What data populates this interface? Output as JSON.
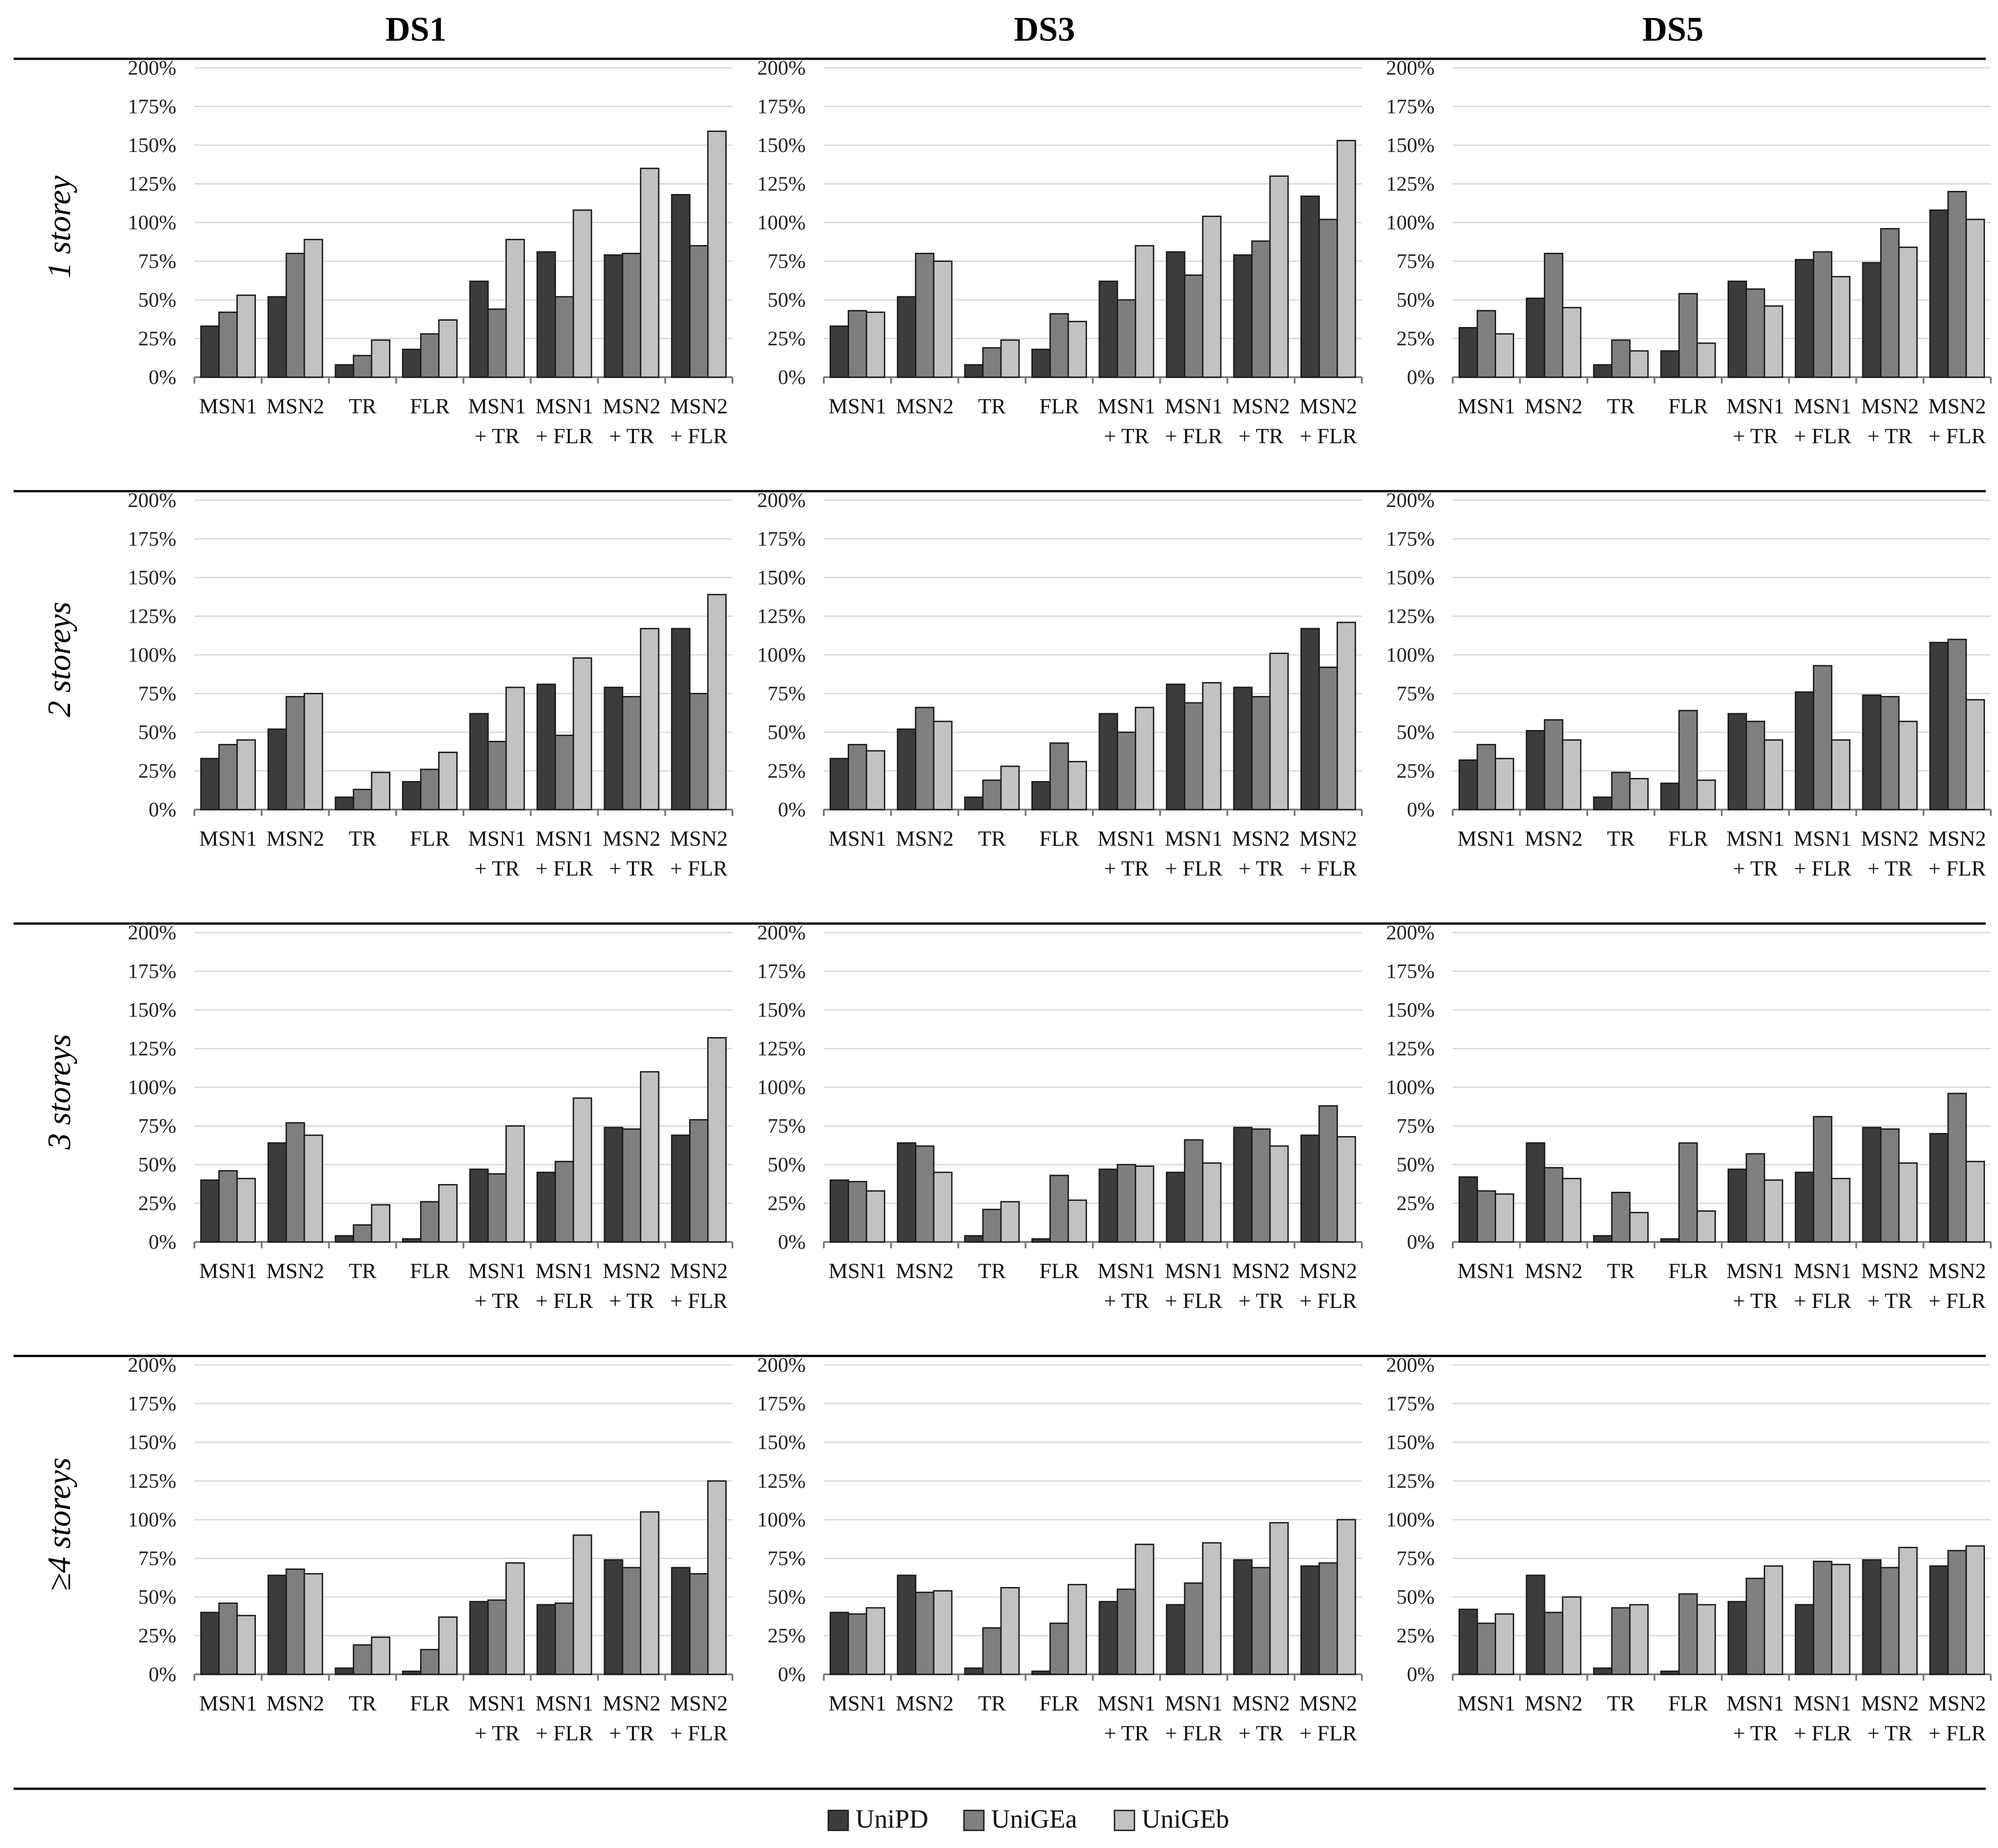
{
  "columns": [
    "DS1",
    "DS3",
    "DS5"
  ],
  "rows": [
    "1 storey",
    "2 storeys",
    "3 storeys",
    "≥4 storeys"
  ],
  "colors": {
    "UniPD": "#3c3c3c",
    "UniGEa": "#7f7f7f",
    "UniGEb": "#c2c2c2",
    "grid": "#d9d9d9",
    "axis": "#7a7a7a",
    "rule": "#000000"
  },
  "legend": [
    {
      "name": "UniPD",
      "color": "#3c3c3c"
    },
    {
      "name": "UniGEa",
      "color": "#7f7f7f"
    },
    {
      "name": "UniGEb",
      "color": "#c2c2c2"
    }
  ],
  "chart_data": [
    {
      "type": "bar",
      "row": "1 storey",
      "column": "DS1",
      "ylim": [
        0,
        200
      ],
      "yticks": [
        "0%",
        "25%",
        "50%",
        "75%",
        "100%",
        "125%",
        "150%",
        "175%",
        "200%"
      ],
      "categories": [
        [
          "MSN1"
        ],
        [
          "MSN2"
        ],
        [
          "TR"
        ],
        [
          "FLR"
        ],
        [
          "MSN1",
          "+ TR"
        ],
        [
          "MSN1",
          "+ FLR"
        ],
        [
          "MSN2",
          "+ TR"
        ],
        [
          "MSN2",
          "+ FLR"
        ]
      ],
      "series": [
        {
          "name": "UniPD",
          "values": [
            33,
            52,
            8,
            18,
            62,
            81,
            79,
            118
          ]
        },
        {
          "name": "UniGEa",
          "values": [
            42,
            80,
            14,
            28,
            44,
            52,
            80,
            85
          ]
        },
        {
          "name": "UniGEb",
          "values": [
            53,
            89,
            24,
            37,
            89,
            108,
            135,
            159
          ]
        }
      ]
    },
    {
      "type": "bar",
      "row": "1 storey",
      "column": "DS3",
      "ylim": [
        0,
        200
      ],
      "yticks": [
        "0%",
        "25%",
        "50%",
        "75%",
        "100%",
        "125%",
        "150%",
        "175%",
        "200%"
      ],
      "categories": [
        [
          "MSN1"
        ],
        [
          "MSN2"
        ],
        [
          "TR"
        ],
        [
          "FLR"
        ],
        [
          "MSN1",
          "+ TR"
        ],
        [
          "MSN1",
          "+ FLR"
        ],
        [
          "MSN2",
          "+ TR"
        ],
        [
          "MSN2",
          "+ FLR"
        ]
      ],
      "series": [
        {
          "name": "UniPD",
          "values": [
            33,
            52,
            8,
            18,
            62,
            81,
            79,
            117
          ]
        },
        {
          "name": "UniGEa",
          "values": [
            43,
            80,
            19,
            41,
            50,
            66,
            88,
            102
          ]
        },
        {
          "name": "UniGEb",
          "values": [
            42,
            75,
            24,
            36,
            85,
            104,
            130,
            153
          ]
        }
      ]
    },
    {
      "type": "bar",
      "row": "1 storey",
      "column": "DS5",
      "ylim": [
        0,
        200
      ],
      "yticks": [
        "0%",
        "25%",
        "50%",
        "75%",
        "100%",
        "125%",
        "150%",
        "175%",
        "200%"
      ],
      "categories": [
        [
          "MSN1"
        ],
        [
          "MSN2"
        ],
        [
          "TR"
        ],
        [
          "FLR"
        ],
        [
          "MSN1",
          "+ TR"
        ],
        [
          "MSN1",
          "+ FLR"
        ],
        [
          "MSN2",
          "+ TR"
        ],
        [
          "MSN2",
          "+ FLR"
        ]
      ],
      "series": [
        {
          "name": "UniPD",
          "values": [
            32,
            51,
            8,
            17,
            62,
            76,
            74,
            108
          ]
        },
        {
          "name": "UniGEa",
          "values": [
            43,
            80,
            24,
            54,
            57,
            81,
            96,
            120
          ]
        },
        {
          "name": "UniGEb",
          "values": [
            28,
            45,
            17,
            22,
            46,
            65,
            84,
            102
          ]
        }
      ]
    },
    {
      "type": "bar",
      "row": "2 storeys",
      "column": "DS1",
      "ylim": [
        0,
        200
      ],
      "yticks": [
        "0%",
        "25%",
        "50%",
        "75%",
        "100%",
        "125%",
        "150%",
        "175%",
        "200%"
      ],
      "categories": [
        [
          "MSN1"
        ],
        [
          "MSN2"
        ],
        [
          "TR"
        ],
        [
          "FLR"
        ],
        [
          "MSN1",
          "+ TR"
        ],
        [
          "MSN1",
          "+ FLR"
        ],
        [
          "MSN2",
          "+ TR"
        ],
        [
          "MSN2",
          "+ FLR"
        ]
      ],
      "series": [
        {
          "name": "UniPD",
          "values": [
            33,
            52,
            8,
            18,
            62,
            81,
            79,
            117
          ]
        },
        {
          "name": "UniGEa",
          "values": [
            42,
            73,
            13,
            26,
            44,
            48,
            73,
            75
          ]
        },
        {
          "name": "UniGEb",
          "values": [
            45,
            75,
            24,
            37,
            79,
            98,
            117,
            139
          ]
        }
      ]
    },
    {
      "type": "bar",
      "row": "2 storeys",
      "column": "DS3",
      "ylim": [
        0,
        200
      ],
      "yticks": [
        "0%",
        "25%",
        "50%",
        "75%",
        "100%",
        "125%",
        "150%",
        "175%",
        "200%"
      ],
      "categories": [
        [
          "MSN1"
        ],
        [
          "MSN2"
        ],
        [
          "TR"
        ],
        [
          "FLR"
        ],
        [
          "MSN1",
          "+ TR"
        ],
        [
          "MSN1",
          "+ FLR"
        ],
        [
          "MSN2",
          "+ TR"
        ],
        [
          "MSN2",
          "+ FLR"
        ]
      ],
      "series": [
        {
          "name": "UniPD",
          "values": [
            33,
            52,
            8,
            18,
            62,
            81,
            79,
            117
          ]
        },
        {
          "name": "UniGEa",
          "values": [
            42,
            66,
            19,
            43,
            50,
            69,
            73,
            92
          ]
        },
        {
          "name": "UniGEb",
          "values": [
            38,
            57,
            28,
            31,
            66,
            82,
            101,
            121
          ]
        }
      ]
    },
    {
      "type": "bar",
      "row": "2 storeys",
      "column": "DS5",
      "ylim": [
        0,
        200
      ],
      "yticks": [
        "0%",
        "25%",
        "50%",
        "75%",
        "100%",
        "125%",
        "150%",
        "175%",
        "200%"
      ],
      "categories": [
        [
          "MSN1"
        ],
        [
          "MSN2"
        ],
        [
          "TR"
        ],
        [
          "FLR"
        ],
        [
          "MSN1",
          "+ TR"
        ],
        [
          "MSN1",
          "+ FLR"
        ],
        [
          "MSN2",
          "+ TR"
        ],
        [
          "MSN2",
          "+ FLR"
        ]
      ],
      "series": [
        {
          "name": "UniPD",
          "values": [
            32,
            51,
            8,
            17,
            62,
            76,
            74,
            108
          ]
        },
        {
          "name": "UniGEa",
          "values": [
            42,
            58,
            24,
            64,
            57,
            93,
            73,
            110
          ]
        },
        {
          "name": "UniGEb",
          "values": [
            33,
            45,
            20,
            19,
            45,
            45,
            57,
            71
          ]
        }
      ]
    },
    {
      "type": "bar",
      "row": "3 storeys",
      "column": "DS1",
      "ylim": [
        0,
        200
      ],
      "yticks": [
        "0%",
        "25%",
        "50%",
        "75%",
        "100%",
        "125%",
        "150%",
        "175%",
        "200%"
      ],
      "categories": [
        [
          "MSN1"
        ],
        [
          "MSN2"
        ],
        [
          "TR"
        ],
        [
          "FLR"
        ],
        [
          "MSN1",
          "+ TR"
        ],
        [
          "MSN1",
          "+ FLR"
        ],
        [
          "MSN2",
          "+ TR"
        ],
        [
          "MSN2",
          "+ FLR"
        ]
      ],
      "series": [
        {
          "name": "UniPD",
          "values": [
            40,
            64,
            4,
            2,
            47,
            45,
            74,
            69
          ]
        },
        {
          "name": "UniGEa",
          "values": [
            46,
            77,
            11,
            26,
            44,
            52,
            73,
            79
          ]
        },
        {
          "name": "UniGEb",
          "values": [
            41,
            69,
            24,
            37,
            75,
            93,
            110,
            132
          ]
        }
      ]
    },
    {
      "type": "bar",
      "row": "3 storeys",
      "column": "DS3",
      "ylim": [
        0,
        200
      ],
      "yticks": [
        "0%",
        "25%",
        "50%",
        "75%",
        "100%",
        "125%",
        "150%",
        "175%",
        "200%"
      ],
      "categories": [
        [
          "MSN1"
        ],
        [
          "MSN2"
        ],
        [
          "TR"
        ],
        [
          "FLR"
        ],
        [
          "MSN1",
          "+ TR"
        ],
        [
          "MSN1",
          "+ FLR"
        ],
        [
          "MSN2",
          "+ TR"
        ],
        [
          "MSN2",
          "+ FLR"
        ]
      ],
      "series": [
        {
          "name": "UniPD",
          "values": [
            40,
            64,
            4,
            2,
            47,
            45,
            74,
            69
          ]
        },
        {
          "name": "UniGEa",
          "values": [
            39,
            62,
            21,
            43,
            50,
            66,
            73,
            88
          ]
        },
        {
          "name": "UniGEb",
          "values": [
            33,
            45,
            26,
            27,
            49,
            51,
            62,
            68
          ]
        }
      ]
    },
    {
      "type": "bar",
      "row": "3 storeys",
      "column": "DS5",
      "ylim": [
        0,
        200
      ],
      "yticks": [
        "0%",
        "25%",
        "50%",
        "75%",
        "100%",
        "125%",
        "150%",
        "175%",
        "200%"
      ],
      "categories": [
        [
          "MSN1"
        ],
        [
          "MSN2"
        ],
        [
          "TR"
        ],
        [
          "FLR"
        ],
        [
          "MSN1",
          "+ TR"
        ],
        [
          "MSN1",
          "+ FLR"
        ],
        [
          "MSN2",
          "+ TR"
        ],
        [
          "MSN2",
          "+ FLR"
        ]
      ],
      "series": [
        {
          "name": "UniPD",
          "values": [
            42,
            64,
            4,
            2,
            47,
            45,
            74,
            70
          ]
        },
        {
          "name": "UniGEa",
          "values": [
            33,
            48,
            32,
            64,
            57,
            81,
            73,
            96
          ]
        },
        {
          "name": "UniGEb",
          "values": [
            31,
            41,
            19,
            20,
            40,
            41,
            51,
            52
          ]
        }
      ]
    },
    {
      "type": "bar",
      "row": "≥4 storeys",
      "column": "DS1",
      "ylim": [
        0,
        200
      ],
      "yticks": [
        "0%",
        "25%",
        "50%",
        "75%",
        "100%",
        "125%",
        "150%",
        "175%",
        "200%"
      ],
      "categories": [
        [
          "MSN1"
        ],
        [
          "MSN2"
        ],
        [
          "TR"
        ],
        [
          "FLR"
        ],
        [
          "MSN1",
          "+ TR"
        ],
        [
          "MSN1",
          "+ FLR"
        ],
        [
          "MSN2",
          "+ TR"
        ],
        [
          "MSN2",
          "+ FLR"
        ]
      ],
      "series": [
        {
          "name": "UniPD",
          "values": [
            40,
            64,
            4,
            2,
            47,
            45,
            74,
            69
          ]
        },
        {
          "name": "UniGEa",
          "values": [
            46,
            68,
            19,
            16,
            48,
            46,
            69,
            65
          ]
        },
        {
          "name": "UniGEb",
          "values": [
            38,
            65,
            24,
            37,
            72,
            90,
            105,
            125
          ]
        }
      ]
    },
    {
      "type": "bar",
      "row": "≥4 storeys",
      "column": "DS3",
      "ylim": [
        0,
        200
      ],
      "yticks": [
        "0%",
        "25%",
        "50%",
        "75%",
        "100%",
        "125%",
        "150%",
        "175%",
        "200%"
      ],
      "categories": [
        [
          "MSN1"
        ],
        [
          "MSN2"
        ],
        [
          "TR"
        ],
        [
          "FLR"
        ],
        [
          "MSN1",
          "+ TR"
        ],
        [
          "MSN1",
          "+ FLR"
        ],
        [
          "MSN2",
          "+ TR"
        ],
        [
          "MSN2",
          "+ FLR"
        ]
      ],
      "series": [
        {
          "name": "UniPD",
          "values": [
            40,
            64,
            4,
            2,
            47,
            45,
            74,
            70
          ]
        },
        {
          "name": "UniGEa",
          "values": [
            39,
            53,
            30,
            33,
            55,
            59,
            69,
            72
          ]
        },
        {
          "name": "UniGEb",
          "values": [
            43,
            54,
            56,
            58,
            84,
            85,
            98,
            100
          ]
        }
      ]
    },
    {
      "type": "bar",
      "row": "≥4 storeys",
      "column": "DS5",
      "ylim": [
        0,
        200
      ],
      "yticks": [
        "0%",
        "25%",
        "50%",
        "75%",
        "100%",
        "125%",
        "150%",
        "175%",
        "200%"
      ],
      "categories": [
        [
          "MSN1"
        ],
        [
          "MSN2"
        ],
        [
          "TR"
        ],
        [
          "FLR"
        ],
        [
          "MSN1",
          "+ TR"
        ],
        [
          "MSN1",
          "+ FLR"
        ],
        [
          "MSN2",
          "+ TR"
        ],
        [
          "MSN2",
          "+ FLR"
        ]
      ],
      "series": [
        {
          "name": "UniPD",
          "values": [
            42,
            64,
            4,
            2,
            47,
            45,
            74,
            70
          ]
        },
        {
          "name": "UniGEa",
          "values": [
            33,
            40,
            43,
            52,
            62,
            73,
            69,
            80
          ]
        },
        {
          "name": "UniGEb",
          "values": [
            39,
            50,
            45,
            45,
            70,
            71,
            82,
            83
          ]
        }
      ]
    }
  ]
}
